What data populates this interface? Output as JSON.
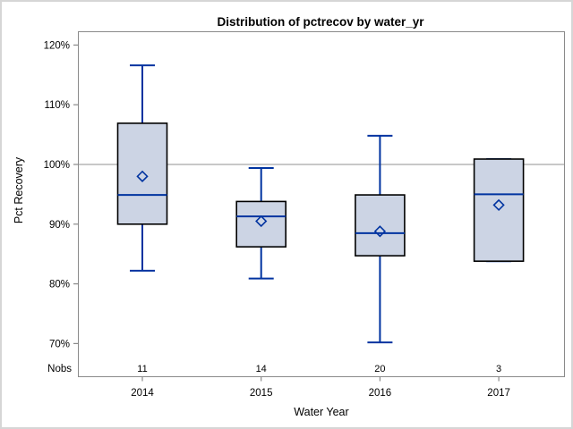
{
  "chart_data": {
    "type": "boxplot",
    "title": "Distribution of pctrecov by water_yr",
    "xlabel": "Water Year",
    "ylabel": "Pct Recovery",
    "nobs_label": "Nobs",
    "categories": [
      "2014",
      "2015",
      "2016",
      "2017"
    ],
    "nobs": [
      "11",
      "14",
      "20",
      "3"
    ],
    "yticks": [
      70,
      80,
      90,
      100,
      110,
      120
    ],
    "ytick_suffix": "%",
    "ylim": [
      64,
      122
    ],
    "reference_line": 100,
    "legend": "none",
    "grid": "off",
    "boxes": [
      {
        "category": "2014",
        "n": 11,
        "whisker_low": 82.2,
        "q1": 90.0,
        "median": 94.9,
        "q3": 106.9,
        "whisker_high": 116.6,
        "mean": 98.0
      },
      {
        "category": "2015",
        "n": 14,
        "whisker_low": 80.9,
        "q1": 86.2,
        "median": 91.3,
        "q3": 93.8,
        "whisker_high": 99.4,
        "mean": 90.5
      },
      {
        "category": "2016",
        "n": 20,
        "whisker_low": 70.2,
        "q1": 84.7,
        "median": 88.5,
        "q3": 94.9,
        "whisker_high": 104.8,
        "mean": 88.8
      },
      {
        "category": "2017",
        "n": 3,
        "whisker_low": 83.8,
        "q1": 83.8,
        "median": 95.0,
        "q3": 100.9,
        "whisker_high": 100.9,
        "mean": 93.2
      }
    ],
    "colors": {
      "box_fill": "#ccd4e4",
      "box_border": "#000000",
      "line": "#0033a0",
      "reference_line": "#a8a8a8",
      "frame": "#8a8a8a",
      "tick": "#8a8a8a",
      "text": "#000000"
    }
  }
}
